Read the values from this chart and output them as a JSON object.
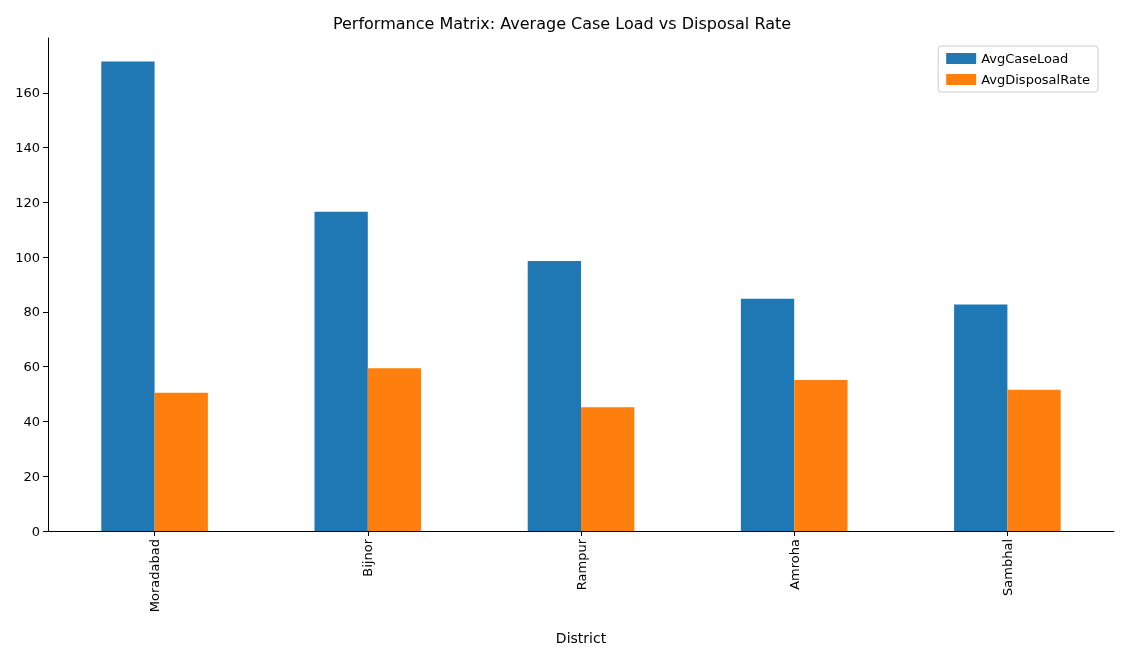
{
  "chart_data": {
    "type": "bar",
    "title": "Performance Matrix: Average Case Load vs Disposal Rate",
    "xlabel": "District",
    "categories": [
      "Moradabad",
      "Bijnor",
      "Rampur",
      "Amroha",
      "Sambhal"
    ],
    "series": [
      {
        "name": "AvgCaseLoad",
        "color": "#1f77b4",
        "values": [
          171.4,
          116.6,
          98.6,
          84.8,
          82.7
        ]
      },
      {
        "name": "AvgDisposalRate",
        "color": "#ff7f0e",
        "values": [
          50.5,
          59.4,
          45.2,
          55.1,
          51.6
        ]
      }
    ],
    "ylim": [
      0,
      180
    ],
    "yticks": [
      0,
      20,
      40,
      60,
      80,
      100,
      120,
      140,
      160
    ],
    "grid": false,
    "legend": "top right"
  }
}
